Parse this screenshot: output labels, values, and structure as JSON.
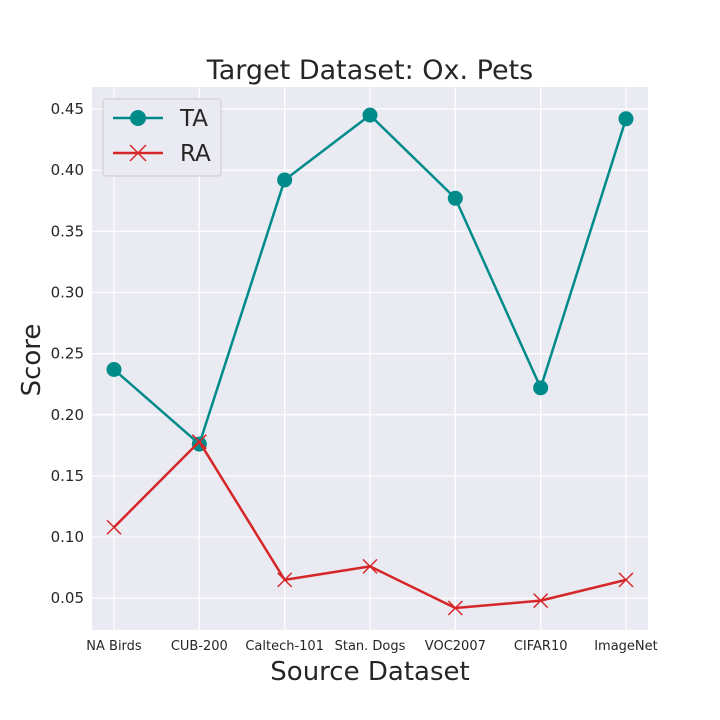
{
  "chart_data": {
    "type": "line",
    "title": "Target Dataset: Ox. Pets",
    "xlabel": "Source Dataset",
    "ylabel": "Score",
    "categories": [
      "NA Birds",
      "CUB-200",
      "Caltech-101",
      "Stan. Dogs",
      "VOC2007",
      "CIFAR10",
      "ImageNet"
    ],
    "ylim": [
      0.024,
      0.468
    ],
    "yticks": [
      "0.05",
      "0.10",
      "0.15",
      "0.20",
      "0.25",
      "0.30",
      "0.35",
      "0.40",
      "0.45"
    ],
    "grid": true,
    "legend": "upper-left",
    "series": [
      {
        "name": "TA",
        "color": "#008b8b",
        "marker": "circle",
        "values": [
          0.237,
          0.176,
          0.392,
          0.445,
          0.377,
          0.222,
          0.442
        ]
      },
      {
        "name": "RA",
        "color": "#d62728",
        "marker": "x",
        "values": [
          0.108,
          0.178,
          0.065,
          0.076,
          0.042,
          0.048,
          0.065
        ]
      }
    ]
  }
}
